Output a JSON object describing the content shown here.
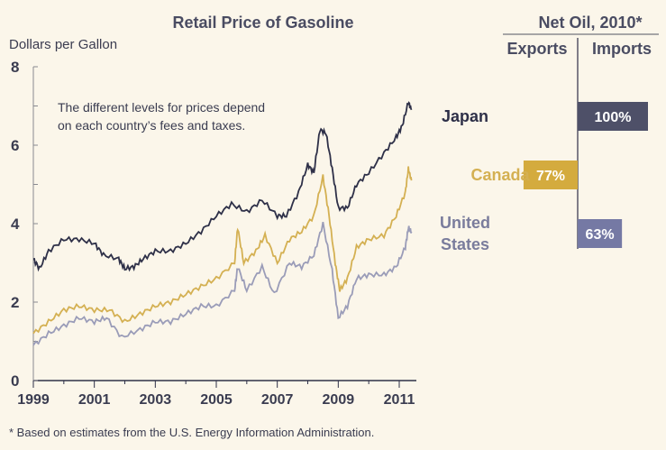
{
  "chart_data": [
    {
      "type": "line",
      "title": "Retail Price of Gasoline",
      "ylabel": "Dollars per Gallon",
      "xlabel": "",
      "ylim": [
        0,
        8
      ],
      "xlim": [
        1999,
        2011.4
      ],
      "y_ticks": [
        0,
        2,
        4,
        6,
        8
      ],
      "x_ticks": [
        1999,
        2001,
        2003,
        2005,
        2007,
        2009,
        2011
      ],
      "annotation": "The different levels for prices depend on each country's fees and taxes.",
      "annotation_lines": [
        "The different levels for prices depend",
        "on each country’s fees and taxes."
      ],
      "series": [
        {
          "name": "Japan",
          "color": "#2e3048",
          "x": [
            1999,
            1999.2,
            1999.5,
            2000,
            2000.5,
            2001,
            2001.3,
            2001.8,
            2002,
            2002.3,
            2002.6,
            2003,
            2003.5,
            2004,
            2004.5,
            2005,
            2005.5,
            2006,
            2006.5,
            2007,
            2007.3,
            2007.7,
            2008,
            2008.2,
            2008.4,
            2008.6,
            2008.8,
            2009,
            2009.3,
            2009.6,
            2010,
            2010.5,
            2010.9,
            2011.1,
            2011.3,
            2011.4
          ],
          "y": [
            3.1,
            2.85,
            3.3,
            3.6,
            3.6,
            3.5,
            3.2,
            3.1,
            2.85,
            2.9,
            3.1,
            3.3,
            3.3,
            3.5,
            3.8,
            4.2,
            4.5,
            4.3,
            4.6,
            4.2,
            4.2,
            4.8,
            5.5,
            5.3,
            6.4,
            6.3,
            5.4,
            4.4,
            4.4,
            5.0,
            5.3,
            5.8,
            6.2,
            6.5,
            7.1,
            6.9
          ]
        },
        {
          "name": "Canada",
          "color": "#d4b052",
          "x": [
            1999,
            1999.5,
            2000,
            2000.5,
            2001,
            2001.5,
            2002,
            2002.5,
            2003,
            2003.5,
            2004,
            2004.5,
            2005,
            2005.6,
            2005.7,
            2005.9,
            2006.3,
            2006.6,
            2007,
            2007.4,
            2007.8,
            2008.2,
            2008.5,
            2008.7,
            2008.9,
            2009.05,
            2009.3,
            2009.6,
            2010,
            2010.5,
            2010.9,
            2011.2,
            2011.3,
            2011.4
          ],
          "y": [
            1.2,
            1.5,
            1.8,
            1.9,
            1.8,
            1.8,
            1.5,
            1.7,
            1.9,
            2.0,
            2.2,
            2.4,
            2.6,
            3.0,
            3.9,
            3.0,
            3.3,
            3.7,
            3.0,
            3.6,
            3.8,
            4.2,
            5.2,
            4.2,
            3.0,
            2.3,
            2.6,
            3.4,
            3.6,
            3.7,
            4.2,
            4.8,
            5.4,
            5.1
          ]
        },
        {
          "name": "United States",
          "color": "#9a9cb8",
          "x": [
            1999,
            1999.5,
            2000,
            2000.5,
            2001,
            2001.4,
            2001.9,
            2002.5,
            2003,
            2003.5,
            2004,
            2004.5,
            2005,
            2005.6,
            2005.7,
            2006,
            2006.5,
            2006.9,
            2007.4,
            2007.8,
            2008.2,
            2008.5,
            2008.8,
            2009,
            2009.3,
            2009.6,
            2010,
            2010.5,
            2010.9,
            2011.2,
            2011.3,
            2011.4
          ],
          "y": [
            0.9,
            1.2,
            1.4,
            1.6,
            1.5,
            1.6,
            1.1,
            1.3,
            1.5,
            1.5,
            1.7,
            1.9,
            1.9,
            2.3,
            2.9,
            2.3,
            2.9,
            2.2,
            3.0,
            2.9,
            3.2,
            4.0,
            2.8,
            1.6,
            1.9,
            2.6,
            2.7,
            2.7,
            2.9,
            3.4,
            3.9,
            3.8
          ]
        }
      ]
    },
    {
      "type": "bar",
      "title": "Net Oil, 2010*",
      "column_headers": [
        "Exports",
        "Imports"
      ],
      "categories": [
        "Japan",
        "Canada",
        "United States"
      ],
      "category_lines": [
        [
          "Japan"
        ],
        [
          "Canada"
        ],
        [
          "United",
          "States"
        ]
      ],
      "values": [
        100,
        -77,
        63
      ],
      "labels": [
        "100%",
        "77%",
        "63%"
      ],
      "directions": [
        "Imports",
        "Exports",
        "Imports"
      ],
      "colors": [
        "#4e5068",
        "#d4ab3e",
        "#7579a4"
      ],
      "text_colors": [
        "#2e3048",
        "#d4b052",
        "#7a7c9c"
      ]
    }
  ],
  "footnote": "* Based on estimates from the U.S. Energy Information Administration."
}
